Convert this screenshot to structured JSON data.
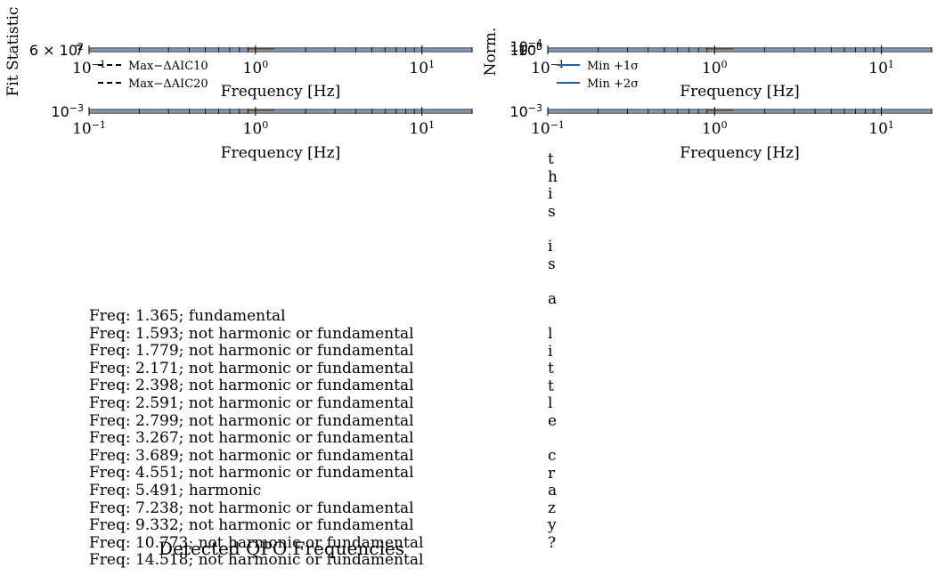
{
  "chart_data": [
    {
      "type": "line",
      "panel": "top-left",
      "xlabel": "Frequency [Hz]",
      "ylabel": "Fit Statistic",
      "xscale": "log",
      "xlim": [
        0.1,
        20
      ],
      "x_tick_labels": [
        "10^-1",
        "10^0",
        "10^1"
      ],
      "y_tick_labels": [
        "6 × 10^2",
        "7"
      ],
      "legend_location": "lower-left",
      "series": [
        {
          "name": "Max−ΔAIC10",
          "style": "dashed",
          "color": "#000000"
        },
        {
          "name": "Max−ΔAIC20",
          "style": "dashed",
          "color": "#000000"
        }
      ]
    },
    {
      "type": "line",
      "panel": "top-right",
      "xlabel": "Frequency [Hz]",
      "ylabel": "Norm.",
      "xscale": "log",
      "xlim": [
        0.1,
        20
      ],
      "x_tick_labels": [
        "10^-1",
        "10^0",
        "10^1"
      ],
      "y_tick_labels": [
        "10^-3",
        "10^0",
        "10^-4"
      ],
      "legend_location": "lower-left",
      "series": [
        {
          "name": "Min +1σ",
          "style": "solid",
          "color": "#1f5fa0"
        },
        {
          "name": "Min +2σ",
          "style": "solid",
          "color": "#1f5fa0"
        }
      ]
    },
    {
      "type": "line",
      "panel": "bottom-left",
      "xlabel": "Frequency [Hz]",
      "xscale": "log",
      "xlim": [
        0.1,
        20
      ],
      "x_tick_labels": [
        "10^-1",
        "10^0",
        "10^1"
      ],
      "y_tick_labels": [
        "10^-3"
      ]
    },
    {
      "type": "line",
      "panel": "bottom-right",
      "xlabel": "Frequency [Hz]",
      "xscale": "log",
      "xlim": [
        0.1,
        20
      ],
      "x_tick_labels": [
        "10^-1",
        "10^0",
        "10^1"
      ],
      "y_tick_labels": [
        "10^-3"
      ]
    }
  ],
  "qpo_title": "Detected QPO Frequencies",
  "qpo_lines": [
    "Freq: 1.365; fundamental",
    "Freq: 1.593; not harmonic or fundamental",
    "Freq: 1.779; not harmonic or fundamental",
    "Freq: 2.171; not harmonic or fundamental",
    "Freq: 2.398; not harmonic or fundamental",
    "Freq: 2.591; not harmonic or fundamental",
    "Freq: 2.799; not harmonic or fundamental",
    "Freq: 3.267; not harmonic or fundamental",
    "Freq: 3.689; not harmonic or fundamental",
    "Freq: 4.551; not harmonic or fundamental",
    "Freq: 5.491; harmonic",
    "Freq: 7.238; not harmonic or fundamental",
    "Freq: 9.332; not harmonic or fundamental",
    "Freq: 10.773; not harmonic or fundamental",
    "Freq: 14.518; not harmonic or fundamental"
  ],
  "vertical_text": [
    "t",
    "h",
    "i",
    "s",
    "",
    "i",
    "s",
    "",
    "a",
    "",
    "l",
    "i",
    "t",
    "t",
    "l",
    "e",
    "",
    "c",
    "r",
    "a",
    "z",
    "y",
    "?"
  ],
  "colors": {
    "axis": "#000000",
    "series_blue": "#1f5fa0",
    "series_orange": "#d9822b"
  }
}
